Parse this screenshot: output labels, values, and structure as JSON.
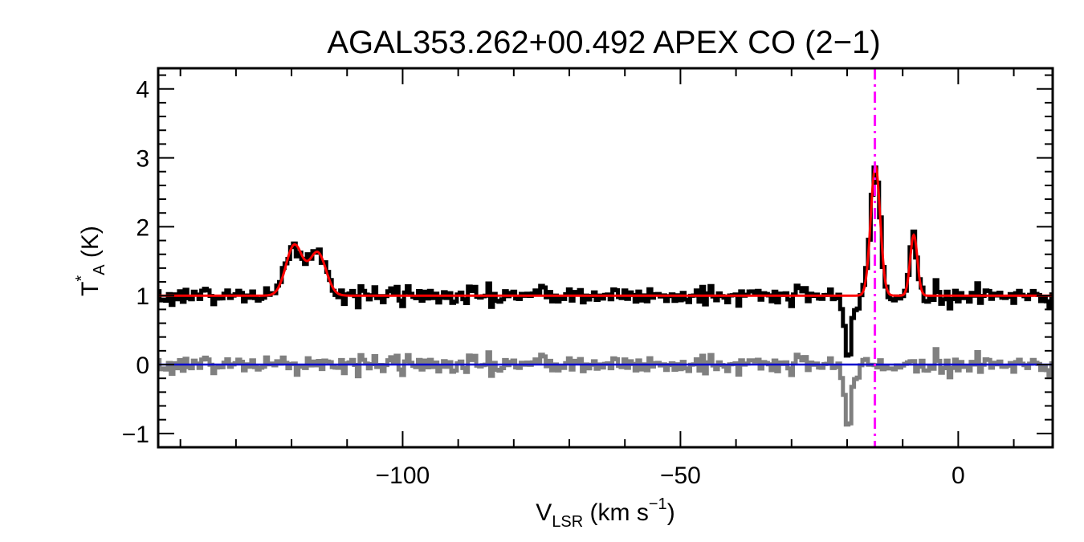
{
  "chart_data": {
    "type": "line",
    "title": "AGAL353.262+00.492  APEX CO (2−1)",
    "xlabel": {
      "main": "V",
      "sub": "LSR",
      "unit_open": " (km s",
      "sup": "−1",
      "unit_close": ")"
    },
    "ylabel": {
      "main": "T",
      "sup": "*",
      "sub": "A",
      "unit": " (K)"
    },
    "xlim": [
      -144,
      17
    ],
    "ylim": [
      -1.2,
      4.3
    ],
    "xticks": [
      -100,
      -50,
      0
    ],
    "xtick_labels": [
      "−100",
      "−50",
      "0"
    ],
    "xminor_step": 10,
    "yticks": [
      -1,
      0,
      1,
      2,
      3,
      4
    ],
    "ytick_labels": [
      "−1",
      "0",
      "1",
      "2",
      "3",
      "4"
    ],
    "yminor_step": 0.2,
    "vline": {
      "x": -15,
      "color": "#ff00ff",
      "style": "dash-dot"
    },
    "spectrum": {
      "color": "#000000",
      "baseline": 1.0,
      "components": [
        {
          "center": -119.5,
          "amplitude": 0.73,
          "sigma": 1.5
        },
        {
          "center": -115.3,
          "amplitude": 0.62,
          "sigma": 1.5
        },
        {
          "center": -14.9,
          "amplitude": 1.88,
          "sigma": 0.85
        },
        {
          "center": -8.0,
          "amplitude": 0.88,
          "sigma": 0.65
        },
        {
          "center": -19.8,
          "amplitude": -0.95,
          "sigma": 0.65
        }
      ]
    },
    "fit": {
      "color": "#ff0000",
      "baseline": 1.0,
      "components": [
        {
          "center": -119.5,
          "amplitude": 0.73,
          "sigma": 1.5
        },
        {
          "center": -115.3,
          "amplitude": 0.62,
          "sigma": 1.5
        },
        {
          "center": -14.9,
          "amplitude": 1.88,
          "sigma": 0.85
        },
        {
          "center": -8.0,
          "amplitude": 0.88,
          "sigma": 0.65
        }
      ]
    },
    "residual": {
      "color": "#808080",
      "baseline": 0.0
    },
    "zero_line": {
      "y": 0,
      "color": "#0000cc"
    },
    "noise_rms": 0.07,
    "channel_width": 0.5,
    "grid": false,
    "legend": "none"
  }
}
